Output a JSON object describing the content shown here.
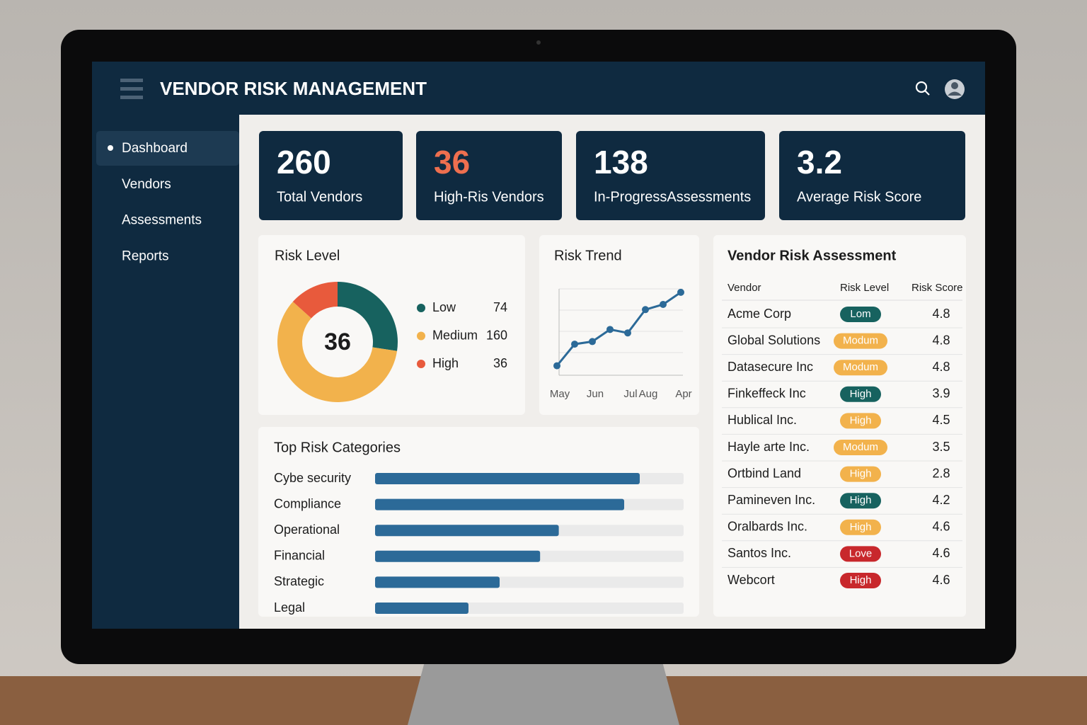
{
  "header": {
    "title": "VENDOR RISK MANAGEMENT"
  },
  "nav": [
    "Dashboard",
    "Vendors",
    "Assessments",
    "Reports"
  ],
  "kpis": [
    {
      "value": 260,
      "label": "Total Vendors",
      "color": "#ffffff"
    },
    {
      "value": 36,
      "label": "High-Ris Vendors",
      "color": "#ee6f4f"
    },
    {
      "value": 138,
      "label": "In-ProgressAssessments",
      "color": "#ffffff"
    },
    {
      "value": 3.2,
      "label": "Average Risk Score",
      "color": "#ffffff"
    }
  ],
  "chart_data": [
    {
      "type": "pie",
      "title": "Risk Level",
      "center_label": 36,
      "categories": [
        "Low",
        "Medium",
        "High"
      ],
      "values": [
        74,
        160,
        36
      ],
      "colors": [
        "#17625f",
        "#f2b24c",
        "#e85a3c"
      ]
    },
    {
      "type": "line",
      "title": "Risk Trend",
      "categories": [
        "May",
        null,
        "Jun",
        null,
        "Jul",
        "Aug",
        null,
        "Apr"
      ],
      "values": [
        11,
        36,
        39,
        53,
        49,
        76,
        82,
        96
      ],
      "ylim": [
        0,
        100
      ],
      "color": "#2c6a98",
      "grid": true
    },
    {
      "type": "bar",
      "orientation": "horizontal",
      "title": "Top Risk Categories",
      "categories": [
        "Cybe security",
        "Compliance",
        "Operational",
        "Financial",
        "Strategic",
        "Legal"
      ],
      "values": [
        85,
        80,
        59,
        53,
        40,
        30
      ],
      "xlim": [
        0,
        100
      ],
      "color": "#2c6a98"
    }
  ],
  "table": {
    "title": "Vendor Risk Assessment",
    "columns": [
      "Vendor",
      "Risk Level",
      "Risk Score"
    ],
    "rows": [
      {
        "vendor": "Acme Corp",
        "level": "Lom",
        "score": 4.8,
        "color": "#17625f"
      },
      {
        "vendor": "Global Solutions",
        "level": "Modum",
        "score": 4.8,
        "color": "#f2b24c"
      },
      {
        "vendor": "Datasecure Inc",
        "level": "Modum",
        "score": 4.8,
        "color": "#f2b24c"
      },
      {
        "vendor": "Finkeffeck Inc",
        "level": "High",
        "score": 3.9,
        "color": "#17625f"
      },
      {
        "vendor": "Hublical Inc.",
        "level": "High",
        "score": 4.5,
        "color": "#f2b24c"
      },
      {
        "vendor": "Hayle arte Inc.",
        "level": "Modum",
        "score": 3.5,
        "color": "#f2b24c"
      },
      {
        "vendor": "Ortbind Land",
        "level": "High",
        "score": 2.8,
        "color": "#f2b24c"
      },
      {
        "vendor": "Pamineven Inc.",
        "level": "High",
        "score": 4.2,
        "color": "#17625f"
      },
      {
        "vendor": "Oralbards Inc.",
        "level": "High",
        "score": 4.6,
        "color": "#f2b24c"
      },
      {
        "vendor": "Santos Inc.",
        "level": "Love",
        "score": 4.6,
        "color": "#c8282c"
      },
      {
        "vendor": "Webcort",
        "level": "High",
        "score": 4.6,
        "color": "#c8282c"
      }
    ]
  }
}
